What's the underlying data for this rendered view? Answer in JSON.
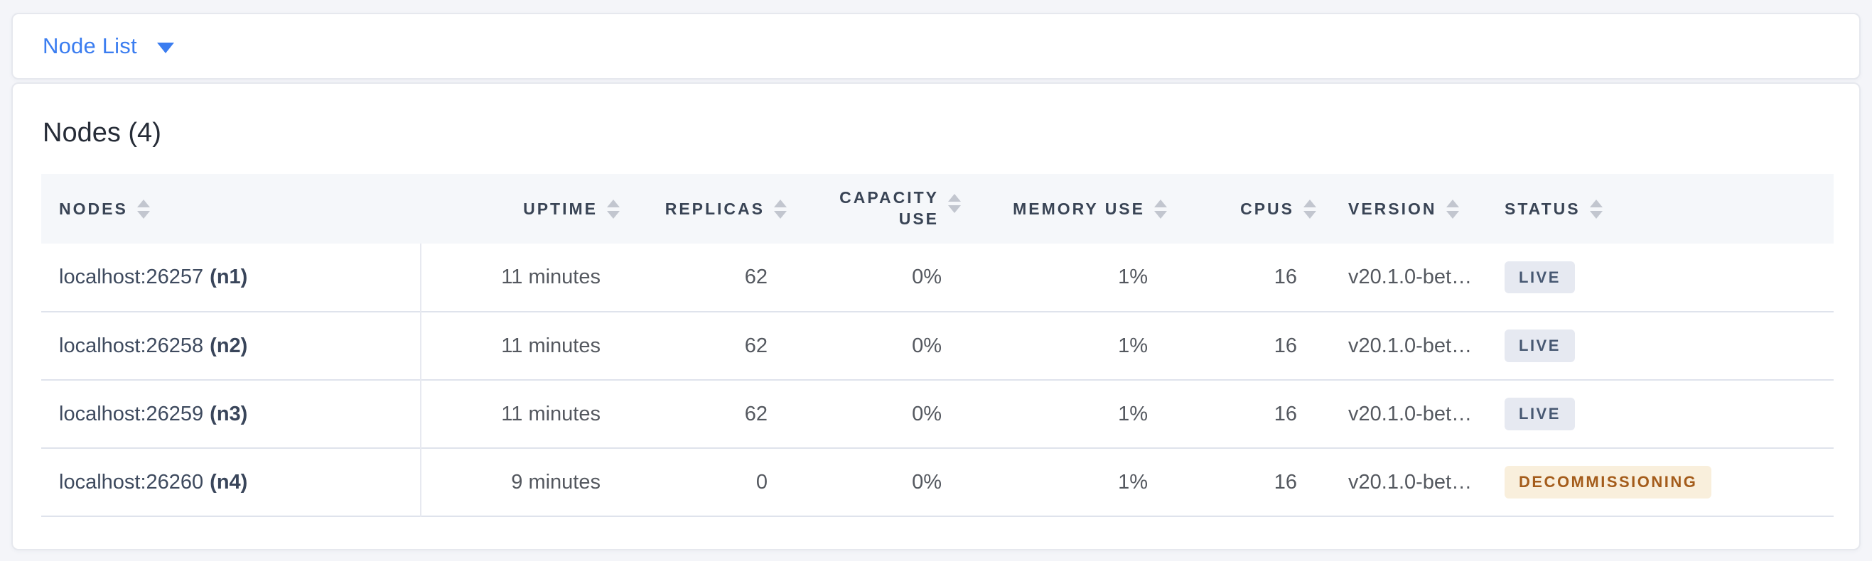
{
  "view_selector": {
    "label": "Node List",
    "accent_color": "#3b7df0"
  },
  "summary": {
    "title": "Nodes (4)"
  },
  "table": {
    "columns": [
      {
        "id": "nodes",
        "label": "NODES",
        "align": "left"
      },
      {
        "id": "uptime",
        "label": "UPTIME",
        "align": "right"
      },
      {
        "id": "replicas",
        "label": "REPLICAS",
        "align": "right"
      },
      {
        "id": "capacity_use",
        "label": "CAPACITY USE",
        "align": "right"
      },
      {
        "id": "memory_use",
        "label": "MEMORY USE",
        "align": "right"
      },
      {
        "id": "cpus",
        "label": "CPUS",
        "align": "right"
      },
      {
        "id": "version",
        "label": "VERSION",
        "align": "left"
      },
      {
        "id": "status",
        "label": "STATUS",
        "align": "left"
      }
    ],
    "rows": [
      {
        "address": "localhost:26257",
        "id_label": "(n1)",
        "uptime": "11 minutes",
        "replicas": "62",
        "capacity_use": "0%",
        "memory_use": "1%",
        "cpus": "16",
        "version": "v20.1.0-bet…",
        "status": {
          "label": "LIVE",
          "kind": "live"
        }
      },
      {
        "address": "localhost:26258",
        "id_label": "(n2)",
        "uptime": "11 minutes",
        "replicas": "62",
        "capacity_use": "0%",
        "memory_use": "1%",
        "cpus": "16",
        "version": "v20.1.0-bet…",
        "status": {
          "label": "LIVE",
          "kind": "live"
        }
      },
      {
        "address": "localhost:26259",
        "id_label": "(n3)",
        "uptime": "11 minutes",
        "replicas": "62",
        "capacity_use": "0%",
        "memory_use": "1%",
        "cpus": "16",
        "version": "v20.1.0-bet…",
        "status": {
          "label": "LIVE",
          "kind": "live"
        }
      },
      {
        "address": "localhost:26260",
        "id_label": "(n4)",
        "uptime": "9 minutes",
        "replicas": "0",
        "capacity_use": "0%",
        "memory_use": "1%",
        "cpus": "16",
        "version": "v20.1.0-bet…",
        "status": {
          "label": "DECOMMISSIONING",
          "kind": "decommissioning"
        }
      }
    ],
    "status_colors": {
      "live": {
        "bg": "#e6e9f1",
        "text": "#475872"
      },
      "decommissioning": {
        "bg": "#f9efdc",
        "text": "#a45c1b"
      }
    }
  }
}
